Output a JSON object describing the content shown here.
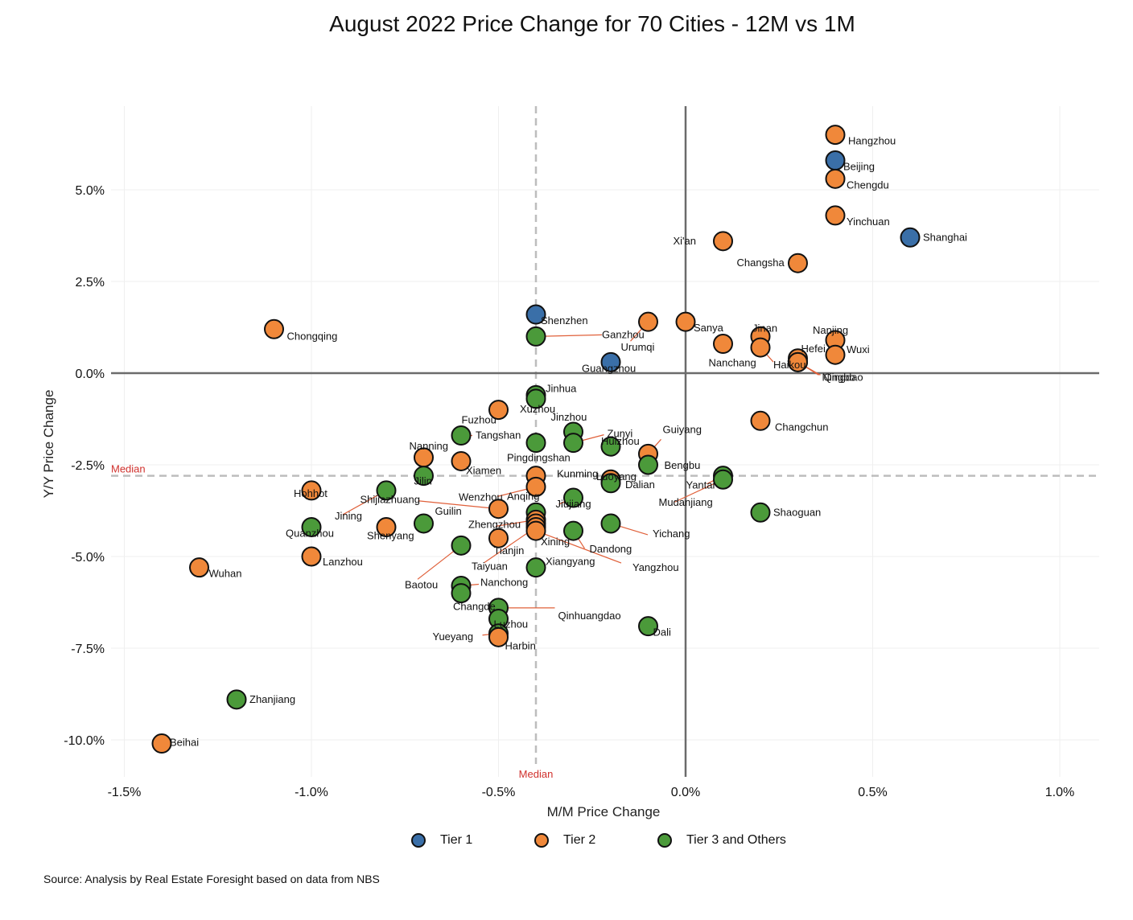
{
  "title": "August 2022 Price Change for 70 Cities - 12M vs 1M",
  "source": "Source: Analysis by Real Estate Foresight based on data from NBS",
  "colors": {
    "tier1": "#3a6fa8",
    "tier2": "#f0883a",
    "tier3": "#4b9a3a",
    "median": "#d0312d",
    "leader": "#e0603a"
  },
  "legend": [
    {
      "label": "Tier 1",
      "tier": "tier1"
    },
    {
      "label": "Tier 2",
      "tier": "tier2"
    },
    {
      "label": "Tier 3 and Others",
      "tier": "tier3"
    }
  ],
  "chart_data": {
    "type": "scatter",
    "title": "August 2022 Price Change for 70 Cities - 12M vs 1M",
    "xlabel": "M/M Price Change",
    "ylabel": "Y/Y Price Change",
    "xlim": [
      -1.5,
      1.1
    ],
    "ylim": [
      -11.0,
      7.0
    ],
    "x_ticks": [
      -1.5,
      -1.0,
      -0.5,
      0.0,
      0.5,
      1.0
    ],
    "x_tick_labels": [
      "-1.5%",
      "-1.0%",
      "-0.5%",
      "0.0%",
      "0.5%",
      "1.0%"
    ],
    "y_ticks": [
      5.0,
      2.5,
      0.0,
      -2.5,
      -5.0,
      -7.5,
      -10.0
    ],
    "y_tick_labels": [
      "5.0%",
      "2.5%",
      "0.0%",
      "-2.5%",
      "-5.0%",
      "-7.5%",
      "-10.0%"
    ],
    "median_x": -0.4,
    "median_y": -2.8,
    "median_label": "Median",
    "grid": true,
    "legend_position": "bottom",
    "points": [
      {
        "city": "Hangzhou",
        "x": 0.4,
        "y": 6.5,
        "tier": "tier2"
      },
      {
        "city": "Beijing",
        "x": 0.4,
        "y": 5.8,
        "tier": "tier1"
      },
      {
        "city": "Chengdu",
        "x": 0.4,
        "y": 5.3,
        "tier": "tier2"
      },
      {
        "city": "Yinchuan",
        "x": 0.4,
        "y": 4.3,
        "tier": "tier2"
      },
      {
        "city": "Shanghai",
        "x": 0.6,
        "y": 3.7,
        "tier": "tier1"
      },
      {
        "city": "Xi'an",
        "x": 0.1,
        "y": 3.6,
        "tier": "tier2"
      },
      {
        "city": "Changsha",
        "x": 0.3,
        "y": 3.0,
        "tier": "tier2"
      },
      {
        "city": "Shenzhen",
        "x": -0.4,
        "y": 1.6,
        "tier": "tier1"
      },
      {
        "city": "Ganzhou",
        "x": -0.4,
        "y": 1.0,
        "tier": "tier3"
      },
      {
        "city": "Urumqi",
        "x": -0.1,
        "y": 1.4,
        "tier": "tier2"
      },
      {
        "city": "Sanya",
        "x": 0.0,
        "y": 1.4,
        "tier": "tier2"
      },
      {
        "city": "Nanchang",
        "x": 0.1,
        "y": 0.8,
        "tier": "tier2"
      },
      {
        "city": "Jinan",
        "x": 0.2,
        "y": 1.0,
        "tier": "tier2"
      },
      {
        "city": "Haikou",
        "x": 0.2,
        "y": 0.7,
        "tier": "tier2"
      },
      {
        "city": "Hefei",
        "x": 0.3,
        "y": 0.4,
        "tier": "tier2"
      },
      {
        "city": "Ningbo",
        "x": 0.3,
        "y": 0.3,
        "tier": "tier2"
      },
      {
        "city": "Qingdao",
        "x": 0.3,
        "y": 0.3,
        "tier": "tier2"
      },
      {
        "city": "Nanjing",
        "x": 0.4,
        "y": 0.9,
        "tier": "tier2"
      },
      {
        "city": "Wuxi",
        "x": 0.4,
        "y": 0.5,
        "tier": "tier2"
      },
      {
        "city": "Chongqing",
        "x": -1.1,
        "y": 1.2,
        "tier": "tier2"
      },
      {
        "city": "Guangzhou",
        "x": -0.2,
        "y": 0.3,
        "tier": "tier1"
      },
      {
        "city": "Jinhua",
        "x": -0.4,
        "y": -0.6,
        "tier": "tier3"
      },
      {
        "city": "Xuzhou",
        "x": -0.4,
        "y": -0.7,
        "tier": "tier3"
      },
      {
        "city": "Fuzhou",
        "x": -0.5,
        "y": -1.0,
        "tier": "tier2"
      },
      {
        "city": "Changchun",
        "x": 0.2,
        "y": -1.3,
        "tier": "tier2"
      },
      {
        "city": "Tangshan",
        "x": -0.6,
        "y": -1.7,
        "tier": "tier3"
      },
      {
        "city": "Jinzhou",
        "x": -0.3,
        "y": -1.6,
        "tier": "tier3"
      },
      {
        "city": "Zunyi",
        "x": -0.3,
        "y": -1.9,
        "tier": "tier3"
      },
      {
        "city": "Huizhou",
        "x": -0.2,
        "y": -2.0,
        "tier": "tier3"
      },
      {
        "city": "Guiyang",
        "x": -0.1,
        "y": -2.2,
        "tier": "tier2"
      },
      {
        "city": "Pingdingshan",
        "x": -0.4,
        "y": -1.9,
        "tier": "tier3"
      },
      {
        "city": "Nanning",
        "x": -0.7,
        "y": -2.3,
        "tier": "tier2"
      },
      {
        "city": "Xiamen",
        "x": -0.6,
        "y": -2.4,
        "tier": "tier2"
      },
      {
        "city": "Bengbu",
        "x": -0.1,
        "y": -2.5,
        "tier": "tier3"
      },
      {
        "city": "Jilin",
        "x": -0.7,
        "y": -2.8,
        "tier": "tier3"
      },
      {
        "city": "Kunming",
        "x": -0.4,
        "y": -2.8,
        "tier": "tier2"
      },
      {
        "city": "Dalian",
        "x": -0.2,
        "y": -2.9,
        "tier": "tier2"
      },
      {
        "city": "Yantai",
        "x": 0.1,
        "y": -2.8,
        "tier": "tier3"
      },
      {
        "city": "Mudanjiang",
        "x": 0.1,
        "y": -2.9,
        "tier": "tier3"
      },
      {
        "city": "Hohhot",
        "x": -1.0,
        "y": -3.2,
        "tier": "tier2"
      },
      {
        "city": "Wenzhou",
        "x": -0.4,
        "y": -3.1,
        "tier": "tier2"
      },
      {
        "city": "Luoyang",
        "x": -0.2,
        "y": -3.0,
        "tier": "tier3"
      },
      {
        "city": "Jiujiang",
        "x": -0.3,
        "y": -3.4,
        "tier": "tier3"
      },
      {
        "city": "Jining",
        "x": -0.8,
        "y": -3.2,
        "tier": "tier3"
      },
      {
        "city": "Shijiazhuang",
        "x": -0.5,
        "y": -3.7,
        "tier": "tier2"
      },
      {
        "city": "Guilin",
        "x": -0.7,
        "y": -4.1,
        "tier": "tier3"
      },
      {
        "city": "Anqing",
        "x": -0.4,
        "y": -3.8,
        "tier": "tier3"
      },
      {
        "city": "Shaoguan",
        "x": 0.2,
        "y": -3.8,
        "tier": "tier3"
      },
      {
        "city": "Quanzhou",
        "x": -1.0,
        "y": -4.2,
        "tier": "tier3"
      },
      {
        "city": "Shenyang",
        "x": -0.8,
        "y": -4.2,
        "tier": "tier2"
      },
      {
        "city": "Zhengzhou",
        "x": -0.4,
        "y": -4.0,
        "tier": "tier2"
      },
      {
        "city": "Xining",
        "x": -0.4,
        "y": -4.1,
        "tier": "tier2"
      },
      {
        "city": "Tianjin",
        "x": -0.5,
        "y": -4.5,
        "tier": "tier2"
      },
      {
        "city": "Yichang",
        "x": -0.2,
        "y": -4.1,
        "tier": "tier3"
      },
      {
        "city": "Dandong",
        "x": -0.3,
        "y": -4.3,
        "tier": "tier3"
      },
      {
        "city": "Taiyuan",
        "x": -0.4,
        "y": -4.2,
        "tier": "tier2"
      },
      {
        "city": "Baotou",
        "x": -0.6,
        "y": -4.7,
        "tier": "tier3"
      },
      {
        "city": "Yangzhou",
        "x": -0.4,
        "y": -4.3,
        "tier": "tier2"
      },
      {
        "city": "Lanzhou",
        "x": -1.0,
        "y": -5.0,
        "tier": "tier2"
      },
      {
        "city": "Wuhan",
        "x": -1.3,
        "y": -5.3,
        "tier": "tier2"
      },
      {
        "city": "Xiangyang",
        "x": -0.4,
        "y": -5.3,
        "tier": "tier3"
      },
      {
        "city": "Nanchong",
        "x": -0.6,
        "y": -5.8,
        "tier": "tier3"
      },
      {
        "city": "Changde",
        "x": -0.6,
        "y": -6.0,
        "tier": "tier3"
      },
      {
        "city": "Qinhuangdao",
        "x": -0.5,
        "y": -6.4,
        "tier": "tier3"
      },
      {
        "city": "Luzhou",
        "x": -0.5,
        "y": -6.7,
        "tier": "tier3"
      },
      {
        "city": "Yueyang",
        "x": -0.5,
        "y": -7.1,
        "tier": "tier3"
      },
      {
        "city": "Harbin",
        "x": -0.5,
        "y": -7.2,
        "tier": "tier2"
      },
      {
        "city": "Dali",
        "x": -0.1,
        "y": -6.9,
        "tier": "tier3"
      },
      {
        "city": "Zhanjiang",
        "x": -1.2,
        "y": -8.9,
        "tier": "tier3"
      },
      {
        "city": "Beihai",
        "x": -1.4,
        "y": -10.1,
        "tier": "tier2"
      }
    ]
  }
}
